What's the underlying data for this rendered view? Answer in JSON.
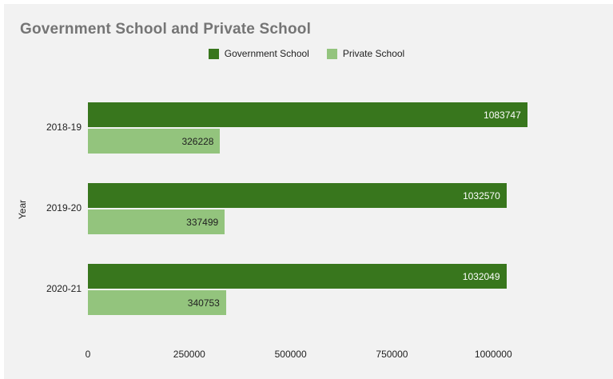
{
  "chart_data": {
    "type": "bar",
    "orientation": "horizontal",
    "title": "Government School and Private School",
    "xlabel": "",
    "ylabel": "Year",
    "categories": [
      "2018-19",
      "2019-20",
      "2020-21"
    ],
    "series": [
      {
        "name": "Government School",
        "color": "#38761d",
        "values": [
          1083747,
          1032570,
          1032049
        ]
      },
      {
        "name": "Private School",
        "color": "#93c47d",
        "values": [
          326228,
          337499,
          340753
        ]
      }
    ],
    "x_ticks": [
      0,
      250000,
      500000,
      750000,
      1000000
    ],
    "x_tick_labels": [
      "0",
      "250000",
      "500000",
      "750000",
      "1000000"
    ],
    "xlim": [
      0,
      1100000
    ],
    "grid": false,
    "legend_position": "top",
    "value_labels": "inside-end"
  },
  "colors": {
    "page_background": "#ffffff",
    "panel_background": "#f2f2f2",
    "title_text": "#757575",
    "axis_text": "#212121",
    "government_green": "#38761d",
    "private_green": "#93c47d",
    "value_label_on_dark": "#ffffff",
    "value_label_on_light": "#212121"
  }
}
